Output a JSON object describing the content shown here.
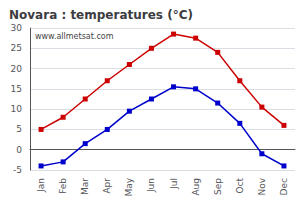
{
  "chart_data": {
    "type": "line",
    "title": "Novara : temperatures (°C)",
    "annotation": "www.allmetsat.com",
    "categories": [
      "Jan",
      "Feb",
      "Mar",
      "Apr",
      "May",
      "Jun",
      "Jul",
      "Aug",
      "Sep",
      "Oct",
      "Nov",
      "Dec"
    ],
    "series": [
      {
        "color": "#cc0000",
        "values": [
          5,
          8,
          12.5,
          17,
          21,
          25,
          28.5,
          27.5,
          24,
          17,
          10.5,
          6
        ]
      },
      {
        "color": "#0000cc",
        "values": [
          -4,
          -3,
          1.5,
          5,
          9.5,
          12.5,
          15.5,
          15,
          11.5,
          6.5,
          -1,
          -4
        ]
      }
    ],
    "marker": "square",
    "ylim": [
      -5,
      30
    ],
    "yticks": [
      -5,
      0,
      5,
      10,
      15,
      20,
      25,
      30
    ],
    "grid": true
  }
}
